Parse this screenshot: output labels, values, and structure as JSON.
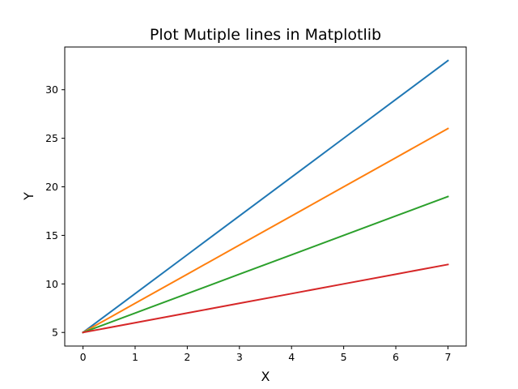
{
  "chart_data": {
    "type": "line",
    "title": "Plot Mutiple lines in Matplotlib",
    "xlabel": "X",
    "ylabel": "Y",
    "x": [
      0,
      1,
      2,
      3,
      4,
      5,
      6,
      7
    ],
    "xlim": [
      -0.35,
      7.35
    ],
    "ylim": [
      3.6,
      34.4
    ],
    "xticks": [
      "0",
      "1",
      "2",
      "3",
      "4",
      "5",
      "6",
      "7"
    ],
    "yticks": [
      "5",
      "10",
      "15",
      "20",
      "25",
      "30"
    ],
    "grid": false,
    "series": [
      {
        "color": "#1f77b4",
        "values": [
          5,
          9,
          13,
          17,
          21,
          25,
          29,
          33
        ]
      },
      {
        "color": "#ff7f0e",
        "values": [
          5,
          8,
          11,
          14,
          17,
          20,
          23,
          26
        ]
      },
      {
        "color": "#2ca02c",
        "values": [
          5,
          7,
          9,
          11,
          13,
          15,
          17,
          19
        ]
      },
      {
        "color": "#d62728",
        "values": [
          5,
          6,
          7,
          8,
          9,
          10,
          11,
          12
        ]
      }
    ]
  }
}
